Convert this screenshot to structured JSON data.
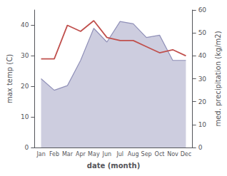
{
  "chart_data": {
    "type": "line",
    "categories": [
      "Jan",
      "Feb",
      "Mar",
      "Apr",
      "May",
      "Jun",
      "Jul",
      "Aug",
      "Sep",
      "Oct",
      "Nov",
      "Dec"
    ],
    "xlabel": "date (month)",
    "ylabel": "max temp (C)",
    "y2label": "med. precipitation (kg/m2)",
    "series": [
      {
        "type": "area",
        "axis": "y2",
        "color": "#9090b8",
        "values": [
          30.0,
          25.0,
          27.0,
          38.0,
          52.0,
          46.0,
          55.0,
          54.0,
          48.0,
          49.0,
          38.0,
          38.0
        ]
      },
      {
        "type": "line",
        "color": "#c0504d",
        "values": [
          29.0,
          29.0,
          40.0,
          38.0,
          41.5,
          36.0,
          35.0,
          35.0,
          33.0,
          31.0,
          32.0,
          30.0
        ]
      }
    ],
    "ylim": [
      0,
      45
    ],
    "yticks": [
      0,
      10,
      20,
      30,
      40
    ],
    "y2lim": [
      0,
      60
    ],
    "y2ticks": [
      0,
      10,
      20,
      30,
      40,
      50,
      60
    ],
    "grid": false
  }
}
